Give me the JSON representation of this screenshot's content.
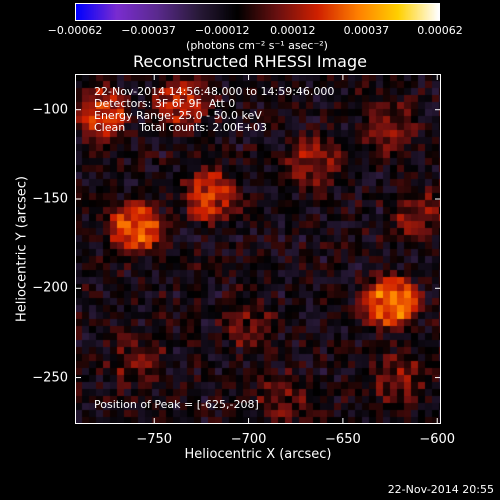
{
  "chart_data": {
    "type": "heatmap",
    "title": "Reconstructed RHESSI Image",
    "xlabel": "Heliocentric X (arcsec)",
    "ylabel": "Heliocentric Y (arcsec)",
    "xlim": [
      -792,
      -598
    ],
    "ylim": [
      -276,
      -80
    ],
    "x_ticks": [
      -750,
      -700,
      -650,
      -600
    ],
    "y_ticks": [
      -100,
      -150,
      -200,
      -250
    ],
    "x_tick_labels": [
      "−750",
      "−700",
      "−650",
      "−600"
    ],
    "y_tick_labels": [
      "−100",
      "−150",
      "−200",
      "−250"
    ],
    "colorbar": {
      "range": [
        -0.00062,
        0.00062
      ],
      "tick_labels": [
        "−0.00062",
        "−0.00037",
        "−0.00012",
        "0.00012",
        "0.00037",
        "0.00062"
      ],
      "ticks": [
        -0.00062,
        -0.00037,
        -0.00012,
        0.00012,
        0.00037,
        0.00062
      ],
      "units": "(photons cm⁻² s⁻¹ asec⁻²)",
      "colors": [
        "#0000ff",
        "#7a2cd0",
        "#5b2a8f",
        "#2a1a3a",
        "#000000",
        "#6a1010",
        "#d02000",
        "#ff8000",
        "#ffd000",
        "#ffffff"
      ]
    },
    "sources": [
      {
        "x": -760,
        "y": -166,
        "intensity": 0.9
      },
      {
        "x": -625,
        "y": -208,
        "intensity": 1.0
      },
      {
        "x": -720,
        "y": -148,
        "intensity": 0.7
      },
      {
        "x": -778,
        "y": -102,
        "intensity": 0.7
      },
      {
        "x": -735,
        "y": -96,
        "intensity": 0.6
      },
      {
        "x": -665,
        "y": -130,
        "intensity": 0.5
      },
      {
        "x": -625,
        "y": -110,
        "intensity": 0.4
      },
      {
        "x": -610,
        "y": -160,
        "intensity": 0.4
      },
      {
        "x": -700,
        "y": -220,
        "intensity": 0.35
      },
      {
        "x": -620,
        "y": -250,
        "intensity": 0.35
      },
      {
        "x": -760,
        "y": -240,
        "intensity": 0.3
      },
      {
        "x": -680,
        "y": -262,
        "intensity": 0.3
      }
    ],
    "annotations": [
      "22-Nov-2014 14:56:48.000 to 14:59:46.000",
      "Detectors: 3F 6F 9F  Att 0",
      "Energy Range: 25.0 - 50.0 keV",
      "Clean    Total counts: 2.00E+03"
    ],
    "peak_label": "Position of Peak = [-625,-208]",
    "peak": {
      "x": -625,
      "y": -208
    }
  },
  "timestamp": "22-Nov-2014 20:55"
}
